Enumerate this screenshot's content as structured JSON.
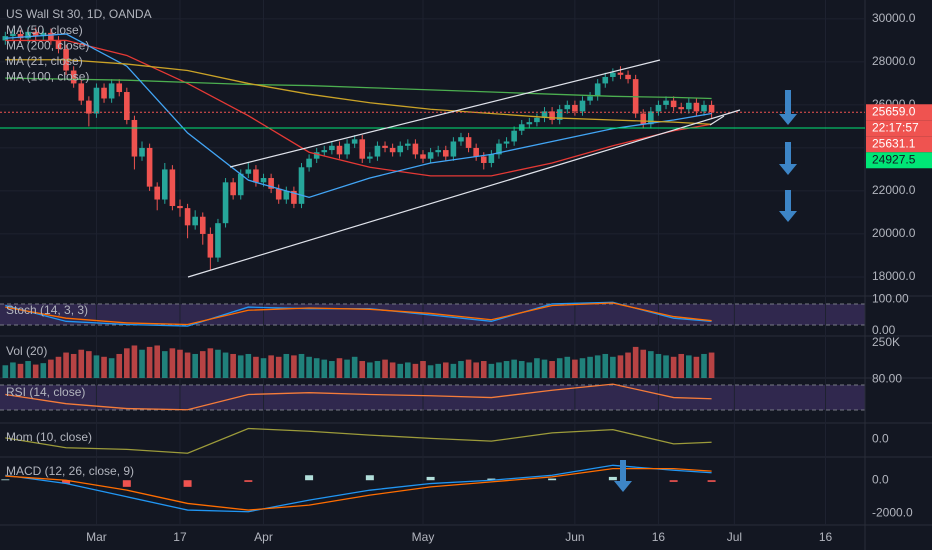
{
  "chart_data": [
    {
      "type": "candlestick",
      "title": "US Wall St 30, 1D, OANDA",
      "x": [
        0,
        1,
        2,
        3,
        4,
        5,
        6,
        7,
        8,
        9,
        10,
        11,
        12,
        13,
        14,
        15,
        16,
        17,
        18,
        19,
        20,
        21,
        22,
        23,
        24,
        25,
        26,
        27,
        28,
        29,
        30,
        31,
        32,
        33,
        34,
        35,
        36,
        37,
        38,
        39,
        40,
        41,
        42,
        43,
        44,
        45,
        46,
        47,
        48,
        49,
        50,
        51,
        52,
        53,
        54,
        55,
        56,
        57,
        58,
        59,
        60,
        61,
        62,
        63,
        64,
        65,
        66,
        67,
        68,
        69,
        70,
        71,
        72,
        73,
        74,
        75,
        76,
        77,
        78,
        79,
        80,
        81,
        82,
        83,
        84,
        85,
        86,
        87,
        88,
        89,
        90,
        91,
        92,
        93
      ],
      "open": [
        29000,
        29200,
        29300,
        29100,
        29400,
        29200,
        29350,
        29000,
        28600,
        27600,
        27000,
        26200,
        25600,
        26800,
        26300,
        27000,
        26600,
        25300,
        23600,
        24000,
        22200,
        21600,
        23000,
        21300,
        21200,
        20400,
        20800,
        20000,
        18900,
        20500,
        22400,
        21800,
        22800,
        23000,
        22400,
        22600,
        22100,
        21600,
        22000,
        21400,
        23100,
        23500,
        23800,
        23900,
        24100,
        23700,
        24200,
        24400,
        23500,
        23600,
        24100,
        24000,
        23800,
        24100,
        24200,
        23700,
        23500,
        23800,
        23900,
        23600,
        24300,
        24500,
        24000,
        23600,
        23300,
        23700,
        24200,
        24300,
        24800,
        25100,
        25200,
        25400,
        25700,
        25300,
        25800,
        26000,
        25700,
        26200,
        26400,
        27000,
        27300,
        27500,
        27400,
        27200,
        25600,
        25100,
        25700,
        26000,
        26200,
        25900,
        25800,
        26100,
        25700,
        26000
      ],
      "high": [
        29400,
        29500,
        29500,
        29600,
        29600,
        29550,
        29550,
        29200,
        28800,
        27800,
        27200,
        26400,
        27000,
        27000,
        27200,
        27200,
        26800,
        25500,
        24300,
        24200,
        22400,
        23300,
        23200,
        21600,
        21400,
        21100,
        21000,
        20300,
        20700,
        22600,
        22600,
        23000,
        23300,
        23200,
        22800,
        22800,
        22300,
        22200,
        22200,
        23300,
        23700,
        24000,
        24100,
        24300,
        24300,
        24400,
        24600,
        24600,
        23800,
        24300,
        24300,
        24200,
        24300,
        24400,
        24400,
        23900,
        24000,
        24100,
        24100,
        24500,
        24700,
        24700,
        24200,
        23800,
        23900,
        24400,
        24500,
        25000,
        25300,
        25400,
        25600,
        25900,
        25900,
        26000,
        26200,
        26200,
        26400,
        26600,
        27200,
        27500,
        27700,
        27800,
        27600,
        27400,
        25800,
        25900,
        26200,
        26400,
        26400,
        26100,
        26300,
        26300,
        26200,
        26200
      ],
      "low": [
        28800,
        29000,
        28900,
        28900,
        29000,
        29000,
        28800,
        28400,
        27400,
        26800,
        26000,
        25000,
        25400,
        26100,
        26100,
        26400,
        25100,
        23000,
        23400,
        22000,
        21100,
        21400,
        21100,
        20800,
        19800,
        20200,
        19500,
        18300,
        18700,
        20300,
        21600,
        21600,
        22600,
        22200,
        22200,
        21900,
        21400,
        21400,
        21200,
        21200,
        22900,
        23300,
        23600,
        23700,
        23500,
        23500,
        24000,
        23300,
        23300,
        23400,
        23800,
        23600,
        23600,
        23900,
        23500,
        23300,
        23300,
        23600,
        23400,
        23400,
        24100,
        23800,
        23400,
        23000,
        23100,
        23500,
        24000,
        24100,
        24600,
        24900,
        25000,
        25200,
        25100,
        25100,
        25600,
        25500,
        25500,
        26000,
        26200,
        26800,
        27100,
        27200,
        27000,
        25400,
        24900,
        24900,
        25500,
        25800,
        25700,
        25600,
        25600,
        25500,
        25500,
        25400
      ],
      "close": [
        29200,
        29300,
        29100,
        29400,
        29200,
        29350,
        29000,
        28600,
        27600,
        27000,
        26200,
        25600,
        26800,
        26300,
        27000,
        26600,
        25300,
        23600,
        24000,
        22200,
        21600,
        23000,
        21300,
        21200,
        20400,
        20800,
        20000,
        18900,
        20500,
        22400,
        21800,
        22800,
        23000,
        22400,
        22600,
        22100,
        21600,
        22000,
        21400,
        23100,
        23500,
        23800,
        23900,
        24100,
        23700,
        24200,
        24400,
        23500,
        23600,
        24100,
        24000,
        23800,
        24100,
        24200,
        23700,
        23500,
        23800,
        23900,
        23600,
        24300,
        24500,
        24000,
        23600,
        23300,
        23700,
        24200,
        24300,
        24800,
        25100,
        25200,
        25400,
        25700,
        25300,
        25800,
        26000,
        25700,
        26200,
        26400,
        27000,
        27300,
        27500,
        27400,
        27200,
        25600,
        25100,
        25700,
        26000,
        26200,
        25900,
        25800,
        26100,
        25700,
        26000,
        25659
      ],
      "up_color": "#26a69a",
      "down_color": "#ef5350",
      "series": [
        {
          "name": "MA (50, close)",
          "color": "#e53935",
          "x": [
            0,
            8,
            16,
            24,
            32,
            40,
            48,
            56,
            64,
            72,
            80,
            88,
            93
          ],
          "values": [
            29000,
            29000,
            28300,
            27000,
            25500,
            23800,
            23100,
            22700,
            22700,
            23300,
            24100,
            24800,
            25100
          ]
        },
        {
          "name": "MA (200, close)",
          "color": "#4caf50",
          "x": [
            0,
            8,
            16,
            24,
            32,
            40,
            48,
            56,
            64,
            72,
            80,
            88,
            93
          ],
          "values": [
            27250,
            27200,
            27150,
            27050,
            26950,
            26900,
            26800,
            26700,
            26600,
            26500,
            26400,
            26350,
            26300
          ]
        },
        {
          "name": "MA (21, close)",
          "color": "#42a5f5",
          "x": [
            0,
            8,
            16,
            24,
            32,
            40,
            48,
            56,
            64,
            72,
            80,
            88,
            93
          ],
          "values": [
            29100,
            29300,
            27800,
            24700,
            22500,
            21700,
            22600,
            23300,
            23700,
            24300,
            24900,
            25300,
            25600
          ]
        },
        {
          "name": "MA (100, close)",
          "color": "#c9a227",
          "x": [
            0,
            8,
            16,
            24,
            32,
            40,
            48,
            56,
            64,
            72,
            80,
            88,
            93
          ],
          "values": [
            28100,
            28100,
            27900,
            27600,
            27000,
            26500,
            26100,
            25800,
            25600,
            25400,
            25300,
            25200,
            25100
          ]
        }
      ],
      "price_labels": [
        {
          "value": 25659.0,
          "label": "25659.0",
          "color": "#ef5350",
          "line": "dotted"
        },
        {
          "value": 25631.1,
          "label": "25631.1",
          "color": "#ef5350"
        },
        {
          "value": 24927.5,
          "label": "24927.5",
          "color": "#00e676",
          "line": "solid"
        }
      ],
      "countdown": "22:17:57",
      "xlim": [
        -0.7,
        113.2
      ],
      "ylim": [
        17160,
        30880
      ],
      "xticks": [
        {
          "value": 12,
          "label": "Mar"
        },
        {
          "value": 23,
          "label": "17"
        },
        {
          "value": 34,
          "label": "Apr"
        },
        {
          "value": 55,
          "label": "May"
        },
        {
          "value": 75,
          "label": "Jun"
        },
        {
          "value": 86,
          "label": "16"
        },
        {
          "value": 96,
          "label": "Jul"
        },
        {
          "value": 108,
          "label": "16"
        }
      ],
      "yticks": [
        {
          "value": 18000,
          "label": "18000.0"
        },
        {
          "value": 20000,
          "label": "20000.0"
        },
        {
          "value": 22000,
          "label": "22000.0"
        },
        {
          "value": 24000,
          "label": "24000.0"
        },
        {
          "value": 26000,
          "label": "26000.0"
        },
        {
          "value": 28000,
          "label": "28000.0"
        },
        {
          "value": 30000,
          "label": "30000.0"
        }
      ],
      "grid": true
    },
    {
      "type": "line",
      "title": "Stoch (14, 3, 3)",
      "x": [
        0,
        8,
        16,
        24,
        32,
        40,
        48,
        56,
        64,
        72,
        80,
        88,
        93
      ],
      "series": [
        {
          "color": "#2196f3",
          "values": [
            80,
            30,
            20,
            15,
            75,
            70,
            70,
            50,
            30,
            85,
            90,
            40,
            30
          ]
        },
        {
          "color": "#ff6d00",
          "values": [
            75,
            40,
            25,
            20,
            65,
            72,
            68,
            55,
            35,
            80,
            88,
            45,
            32
          ]
        }
      ],
      "ylim": [
        -10,
        110
      ],
      "yticks": [
        {
          "value": 100,
          "label": "100.00"
        },
        {
          "value": 0,
          "label": "0.00"
        }
      ],
      "grid": false
    },
    {
      "type": "bar",
      "title": "Vol (20)",
      "values": [
        90000,
        110000,
        100000,
        120000,
        95000,
        105000,
        130000,
        150000,
        180000,
        170000,
        200000,
        190000,
        160000,
        150000,
        140000,
        170000,
        210000,
        230000,
        200000,
        220000,
        230000,
        190000,
        210000,
        200000,
        180000,
        170000,
        190000,
        210000,
        200000,
        180000,
        170000,
        160000,
        170000,
        150000,
        140000,
        160000,
        150000,
        170000,
        160000,
        170000,
        150000,
        140000,
        130000,
        120000,
        140000,
        130000,
        150000,
        120000,
        110000,
        120000,
        130000,
        110000,
        100000,
        110000,
        100000,
        120000,
        90000,
        100000,
        110000,
        100000,
        120000,
        130000,
        110000,
        120000,
        100000,
        110000,
        120000,
        130000,
        120000,
        110000,
        140000,
        130000,
        120000,
        140000,
        150000,
        130000,
        140000,
        150000,
        160000,
        170000,
        150000,
        160000,
        180000,
        220000,
        200000,
        190000,
        170000,
        160000,
        150000,
        170000,
        160000,
        150000,
        170000,
        180000
      ],
      "ylim": [
        0,
        290000
      ],
      "yticks": [
        {
          "value": 250000,
          "label": "250K"
        }
      ],
      "grid": false
    },
    {
      "type": "line",
      "title": "RSI (14, close)",
      "x": [
        0,
        8,
        16,
        24,
        32,
        40,
        48,
        56,
        64,
        72,
        80,
        88,
        93
      ],
      "series": [
        {
          "color": "#f57c3a",
          "values": [
            55,
            40,
            32,
            30,
            55,
            58,
            55,
            53,
            50,
            62,
            72,
            50,
            48
          ]
        }
      ],
      "ylim": [
        10,
        82
      ],
      "yticks": [
        {
          "value": 80,
          "label": "80.00"
        }
      ],
      "grid": false
    },
    {
      "type": "line",
      "title": "Mom (10, close)",
      "x": [
        0,
        8,
        16,
        24,
        32,
        40,
        48,
        56,
        64,
        72,
        80,
        88,
        93
      ],
      "series": [
        {
          "color": "#9c9b3a",
          "values": [
            300,
            -1500,
            -1800,
            -2500,
            2000,
            1500,
            800,
            200,
            -300,
            1200,
            1800,
            -800,
            -500
          ]
        }
      ],
      "ylim": [
        -3000,
        3000
      ],
      "yticks": [
        {
          "value": 0,
          "label": "0.0"
        }
      ],
      "grid": false
    },
    {
      "type": "line",
      "title": "MACD (12, 26, close, 9)",
      "x": [
        0,
        8,
        16,
        24,
        32,
        40,
        48,
        56,
        64,
        72,
        80,
        88,
        93
      ],
      "series": [
        {
          "color": "#2196f3",
          "values": [
            300,
            -200,
            -1000,
            -1800,
            -1900,
            -1200,
            -600,
            -200,
            0,
            300,
            900,
            600,
            450
          ]
        },
        {
          "color": "#ff6d00",
          "values": [
            250,
            0,
            -600,
            -1400,
            -1800,
            -1500,
            -900,
            -400,
            -100,
            200,
            700,
            700,
            550
          ]
        }
      ],
      "histogram": {
        "values": [
          50,
          -200,
          -400,
          -400,
          -100,
          300,
          300,
          200,
          100,
          100,
          200,
          -100,
          -100
        ],
        "up_color": "#b2dfdb",
        "down_color": "#ef5350"
      },
      "ylim": [
        -2700,
        1400
      ],
      "yticks": [
        {
          "value": 0,
          "label": "0.0"
        },
        {
          "value": -2000,
          "label": "-2000.0"
        }
      ],
      "grid": false
    }
  ]
}
